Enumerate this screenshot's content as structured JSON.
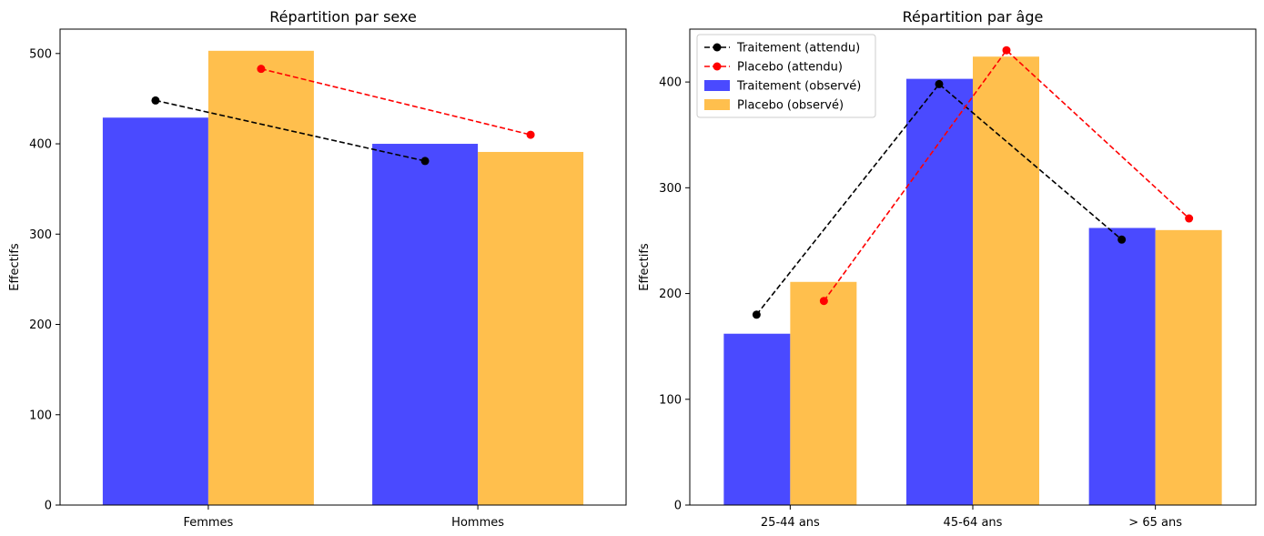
{
  "chart_data": [
    {
      "type": "bar",
      "title": "Répartition par sexe",
      "xlabel": "",
      "ylabel": "Effectifs",
      "categories": [
        "Femmes",
        "Hommes"
      ],
      "ylim": [
        0,
        527
      ],
      "yticks": [
        0,
        100,
        200,
        300,
        400,
        500
      ],
      "series": [
        {
          "name": "Traitement (observé)",
          "kind": "bar",
          "color": "#4a4aff",
          "values": [
            429,
            400
          ]
        },
        {
          "name": "Placebo (observé)",
          "kind": "bar",
          "color": "#ffbf4d",
          "values": [
            503,
            391
          ]
        },
        {
          "name": "Traitement (attendu)",
          "kind": "line",
          "style": "dashed",
          "marker": "circle",
          "color": "#000000",
          "values": [
            448,
            381
          ]
        },
        {
          "name": "Placebo (attendu)",
          "kind": "line",
          "style": "dashed",
          "marker": "circle",
          "color": "#ff0000",
          "values": [
            483,
            410
          ]
        }
      ],
      "legend": null,
      "grid": false
    },
    {
      "type": "bar",
      "title": "Répartition par âge",
      "xlabel": "",
      "ylabel": "Effectifs",
      "categories": [
        "25-44 ans",
        "45-64 ans",
        "> 65 ans"
      ],
      "ylim": [
        0,
        450
      ],
      "yticks": [
        0,
        100,
        200,
        300,
        400
      ],
      "series": [
        {
          "name": "Traitement (observé)",
          "kind": "bar",
          "color": "#4a4aff",
          "values": [
            162,
            403,
            262
          ]
        },
        {
          "name": "Placebo (observé)",
          "kind": "bar",
          "color": "#ffbf4d",
          "values": [
            211,
            424,
            260
          ]
        },
        {
          "name": "Traitement (attendu)",
          "kind": "line",
          "style": "dashed",
          "marker": "circle",
          "color": "#000000",
          "values": [
            180,
            398,
            251
          ]
        },
        {
          "name": "Placebo (attendu)",
          "kind": "line",
          "style": "dashed",
          "marker": "circle",
          "color": "#ff0000",
          "values": [
            193,
            430,
            271
          ]
        }
      ],
      "legend": "top-left",
      "legend_order": [
        "Traitement (attendu)",
        "Placebo (attendu)",
        "Traitement (observé)",
        "Placebo (observé)"
      ],
      "grid": false
    }
  ]
}
